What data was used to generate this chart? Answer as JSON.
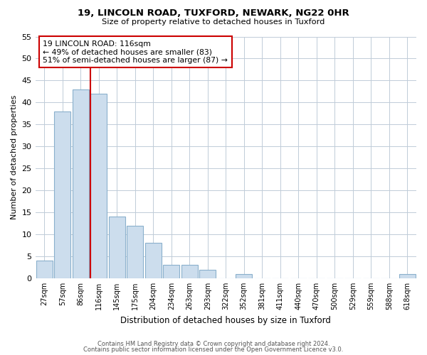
{
  "title1": "19, LINCOLN ROAD, TUXFORD, NEWARK, NG22 0HR",
  "title2": "Size of property relative to detached houses in Tuxford",
  "xlabel": "Distribution of detached houses by size in Tuxford",
  "ylabel": "Number of detached properties",
  "bar_labels": [
    "27sqm",
    "57sqm",
    "86sqm",
    "116sqm",
    "145sqm",
    "175sqm",
    "204sqm",
    "234sqm",
    "263sqm",
    "293sqm",
    "322sqm",
    "352sqm",
    "381sqm",
    "411sqm",
    "440sqm",
    "470sqm",
    "500sqm",
    "529sqm",
    "559sqm",
    "588sqm",
    "618sqm"
  ],
  "bar_values": [
    4,
    38,
    43,
    42,
    14,
    12,
    8,
    3,
    3,
    2,
    0,
    1,
    0,
    0,
    0,
    0,
    0,
    0,
    0,
    0,
    1
  ],
  "bar_color": "#ccdded",
  "bar_edge_color": "#8ab0cc",
  "vline_color": "#cc0000",
  "ylim": [
    0,
    55
  ],
  "yticks": [
    0,
    5,
    10,
    15,
    20,
    25,
    30,
    35,
    40,
    45,
    50,
    55
  ],
  "annotation_title": "19 LINCOLN ROAD: 116sqm",
  "annotation_line1": "← 49% of detached houses are smaller (83)",
  "annotation_line2": "51% of semi-detached houses are larger (87) →",
  "annotation_box_color": "#ffffff",
  "annotation_box_edge": "#cc0000",
  "footer1": "Contains HM Land Registry data © Crown copyright and database right 2024.",
  "footer2": "Contains public sector information licensed under the Open Government Licence v3.0.",
  "background_color": "#ffffff",
  "grid_color": "#c0ccd8"
}
